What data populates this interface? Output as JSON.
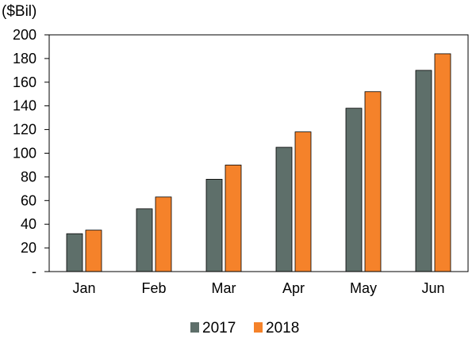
{
  "chart_data": {
    "type": "bar",
    "title": "",
    "unit_label": "($Bil)",
    "xlabel": "",
    "ylabel": "",
    "categories": [
      "Jan",
      "Feb",
      "Mar",
      "Apr",
      "May",
      "Jun"
    ],
    "series": [
      {
        "name": "2017",
        "values": [
          32,
          53,
          78,
          105,
          138,
          170
        ],
        "color": "#5e6f6a"
      },
      {
        "name": "2018",
        "values": [
          35,
          63,
          90,
          118,
          152,
          184
        ],
        "color": "#f5822a"
      }
    ],
    "ylim": [
      0,
      200
    ],
    "yticks": [
      0,
      20,
      40,
      60,
      80,
      100,
      120,
      140,
      160,
      180,
      200
    ],
    "ytick_labels": [
      "-",
      "20",
      "40",
      "60",
      "80",
      "100",
      "120",
      "140",
      "160",
      "180",
      "200"
    ],
    "grid": false,
    "legend_position": "bottom"
  }
}
